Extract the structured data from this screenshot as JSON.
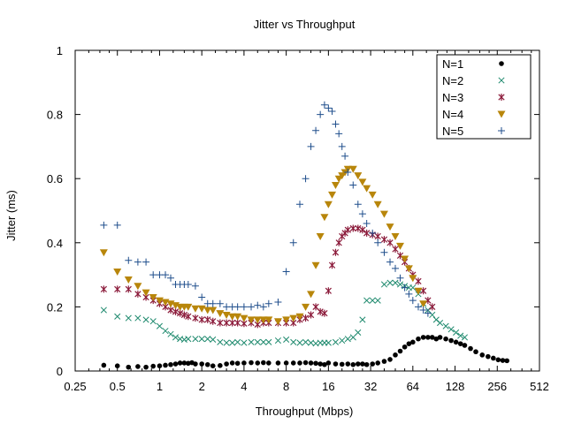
{
  "chart_data": {
    "type": "scatter",
    "title": "Jitter vs Throughput",
    "xlabel": "Throughput (Mbps)",
    "ylabel": "Jitter (ms)",
    "xscale": "log2",
    "xlim": [
      0.25,
      512
    ],
    "ylim": [
      0,
      1
    ],
    "xticks": [
      0.25,
      0.5,
      1,
      2,
      4,
      8,
      16,
      32,
      64,
      128,
      256,
      512
    ],
    "xtick_labels": [
      "0.25",
      "0.5",
      "1",
      "2",
      "4",
      "8",
      "16",
      "32",
      "64",
      "128",
      "256",
      "512"
    ],
    "yticks": [
      0,
      0.2,
      0.4,
      0.6,
      0.8,
      1
    ],
    "ytick_labels": [
      "0",
      "0.2",
      "0.4",
      "0.6",
      "0.8",
      "1"
    ],
    "grid": false,
    "legend_position": "top-right",
    "series": [
      {
        "name": "N=1",
        "color": "#000000",
        "marker": "filled-circle",
        "x": [
          0.4,
          0.5,
          0.6,
          0.7,
          0.8,
          0.9,
          1,
          1.1,
          1.2,
          1.3,
          1.4,
          1.5,
          1.6,
          1.7,
          1.8,
          2,
          2.2,
          2.4,
          2.7,
          3,
          3.3,
          3.6,
          4,
          4.5,
          5,
          5.5,
          6,
          7,
          8,
          9,
          10,
          11,
          12,
          13,
          14,
          15,
          16,
          18,
          20,
          22,
          24,
          26,
          28,
          30,
          33,
          36,
          40,
          44,
          48,
          52,
          56,
          60,
          64,
          70,
          76,
          82,
          88,
          94,
          100,
          110,
          120,
          130,
          140,
          150,
          165,
          180,
          200,
          220,
          240,
          260,
          280,
          300
        ],
        "y": [
          0.018,
          0.016,
          0.012,
          0.014,
          0.012,
          0.015,
          0.016,
          0.018,
          0.02,
          0.022,
          0.025,
          0.025,
          0.024,
          0.026,
          0.022,
          0.022,
          0.02,
          0.016,
          0.017,
          0.022,
          0.025,
          0.024,
          0.025,
          0.026,
          0.025,
          0.026,
          0.025,
          0.025,
          0.025,
          0.025,
          0.025,
          0.026,
          0.025,
          0.024,
          0.022,
          0.02,
          0.025,
          0.022,
          0.021,
          0.022,
          0.02,
          0.022,
          0.022,
          0.02,
          0.022,
          0.025,
          0.03,
          0.036,
          0.05,
          0.062,
          0.075,
          0.085,
          0.09,
          0.1,
          0.105,
          0.105,
          0.105,
          0.1,
          0.105,
          0.1,
          0.095,
          0.09,
          0.085,
          0.08,
          0.07,
          0.06,
          0.05,
          0.045,
          0.04,
          0.035,
          0.033,
          0.032
        ]
      },
      {
        "name": "N=2",
        "color": "#1f8a6e",
        "marker": "x",
        "x": [
          0.4,
          0.5,
          0.6,
          0.7,
          0.8,
          0.9,
          1,
          1.1,
          1.2,
          1.3,
          1.4,
          1.5,
          1.6,
          1.8,
          2,
          2.2,
          2.4,
          2.7,
          3,
          3.3,
          3.6,
          4,
          4.5,
          5,
          5.5,
          6,
          7,
          8,
          9,
          10,
          11,
          12,
          13,
          14,
          15,
          16,
          18,
          20,
          22,
          24,
          26,
          28,
          30,
          33,
          36,
          40,
          44,
          48,
          52,
          56,
          60,
          64,
          70,
          76,
          82,
          88,
          94,
          100,
          110,
          120,
          130,
          140,
          150
        ],
        "y": [
          0.19,
          0.17,
          0.165,
          0.165,
          0.16,
          0.155,
          0.14,
          0.125,
          0.115,
          0.105,
          0.1,
          0.098,
          0.1,
          0.1,
          0.1,
          0.1,
          0.098,
          0.09,
          0.088,
          0.088,
          0.09,
          0.088,
          0.09,
          0.09,
          0.09,
          0.09,
          0.095,
          0.098,
          0.09,
          0.088,
          0.09,
          0.088,
          0.086,
          0.088,
          0.088,
          0.088,
          0.09,
          0.095,
          0.1,
          0.105,
          0.12,
          0.16,
          0.22,
          0.22,
          0.22,
          0.27,
          0.275,
          0.275,
          0.27,
          0.265,
          0.26,
          0.26,
          0.24,
          0.21,
          0.19,
          0.175,
          0.16,
          0.15,
          0.14,
          0.13,
          0.12,
          0.11,
          0.105
        ]
      },
      {
        "name": "N=3",
        "color": "#8b1a3a",
        "marker": "asterisk",
        "x": [
          0.4,
          0.5,
          0.6,
          0.7,
          0.8,
          0.9,
          1,
          1.1,
          1.2,
          1.3,
          1.4,
          1.5,
          1.6,
          1.8,
          2,
          2.2,
          2.4,
          2.7,
          3,
          3.3,
          3.6,
          4,
          4.5,
          5,
          5.5,
          6,
          7,
          8,
          9,
          10,
          11,
          12,
          13,
          14,
          15,
          16,
          17,
          18,
          19,
          20,
          21,
          22,
          24,
          26,
          28,
          30,
          33,
          36,
          40,
          44,
          48,
          52,
          56,
          60,
          64,
          70,
          76,
          82,
          88
        ],
        "y": [
          0.255,
          0.255,
          0.255,
          0.24,
          0.23,
          0.22,
          0.21,
          0.2,
          0.19,
          0.185,
          0.18,
          0.175,
          0.17,
          0.165,
          0.16,
          0.16,
          0.155,
          0.15,
          0.15,
          0.15,
          0.15,
          0.148,
          0.15,
          0.145,
          0.15,
          0.15,
          0.15,
          0.15,
          0.15,
          0.16,
          0.165,
          0.175,
          0.2,
          0.185,
          0.18,
          0.25,
          0.33,
          0.37,
          0.4,
          0.42,
          0.43,
          0.44,
          0.445,
          0.445,
          0.44,
          0.43,
          0.425,
          0.42,
          0.41,
          0.4,
          0.38,
          0.36,
          0.34,
          0.32,
          0.3,
          0.28,
          0.25,
          0.22,
          0.2
        ]
      },
      {
        "name": "N=4",
        "color": "#b8860b",
        "marker": "triangle-down",
        "x": [
          0.4,
          0.5,
          0.6,
          0.7,
          0.8,
          0.9,
          1,
          1.1,
          1.2,
          1.3,
          1.4,
          1.5,
          1.6,
          1.8,
          2,
          2.2,
          2.4,
          2.7,
          3,
          3.3,
          3.6,
          4,
          4.5,
          5,
          5.5,
          6,
          7,
          8,
          9,
          10,
          11,
          12,
          13,
          14,
          15,
          16,
          17,
          18,
          19,
          20,
          21,
          22,
          24,
          26,
          28,
          30,
          33,
          36,
          40,
          44,
          48,
          52,
          56,
          60,
          64,
          70,
          76
        ],
        "y": [
          0.37,
          0.31,
          0.285,
          0.265,
          0.245,
          0.23,
          0.22,
          0.215,
          0.21,
          0.205,
          0.2,
          0.2,
          0.2,
          0.195,
          0.195,
          0.19,
          0.19,
          0.18,
          0.175,
          0.17,
          0.17,
          0.165,
          0.16,
          0.16,
          0.16,
          0.16,
          0.155,
          0.16,
          0.165,
          0.17,
          0.2,
          0.24,
          0.33,
          0.42,
          0.48,
          0.52,
          0.55,
          0.58,
          0.6,
          0.61,
          0.62,
          0.63,
          0.63,
          0.61,
          0.59,
          0.57,
          0.55,
          0.52,
          0.49,
          0.45,
          0.42,
          0.39,
          0.35,
          0.32,
          0.29,
          0.25,
          0.21
        ]
      },
      {
        "name": "N=5",
        "color": "#1f4e8c",
        "marker": "plus",
        "x": [
          0.4,
          0.5,
          0.6,
          0.7,
          0.8,
          0.9,
          1,
          1.1,
          1.2,
          1.3,
          1.4,
          1.5,
          1.6,
          1.8,
          2,
          2.2,
          2.4,
          2.7,
          3,
          3.3,
          3.6,
          4,
          4.5,
          5,
          5.5,
          6,
          7,
          8,
          9,
          10,
          11,
          12,
          13,
          14,
          15,
          16,
          17,
          18,
          19,
          20,
          21,
          22,
          24,
          26,
          28,
          30,
          33,
          36,
          40,
          44,
          48,
          52,
          56,
          60,
          64,
          70,
          76,
          82
        ],
        "y": [
          0.455,
          0.455,
          0.345,
          0.34,
          0.34,
          0.3,
          0.3,
          0.3,
          0.29,
          0.27,
          0.27,
          0.27,
          0.27,
          0.265,
          0.23,
          0.21,
          0.21,
          0.21,
          0.2,
          0.2,
          0.2,
          0.2,
          0.2,
          0.205,
          0.2,
          0.21,
          0.215,
          0.31,
          0.4,
          0.52,
          0.6,
          0.7,
          0.75,
          0.8,
          0.83,
          0.82,
          0.81,
          0.77,
          0.74,
          0.7,
          0.67,
          0.62,
          0.58,
          0.52,
          0.49,
          0.46,
          0.43,
          0.4,
          0.37,
          0.34,
          0.32,
          0.29,
          0.26,
          0.24,
          0.22,
          0.2,
          0.19,
          0.18
        ]
      }
    ]
  }
}
